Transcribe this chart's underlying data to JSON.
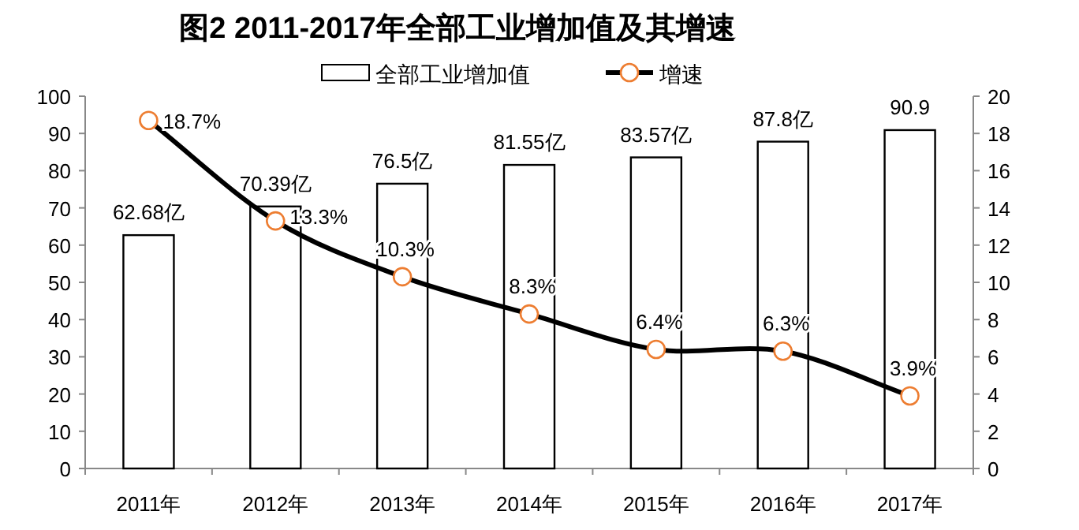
{
  "chart_data": {
    "type": "bar",
    "title": "图2   2011-2017年全部工业增加值及其增速",
    "categories": [
      "2011年",
      "2012年",
      "2013年",
      "2014年",
      "2015年",
      "2016年",
      "2017年"
    ],
    "series": [
      {
        "name": "全部工业增加值",
        "color": "#ffffff",
        "values": [
          62.68,
          70.39,
          76.5,
          81.55,
          83.57,
          87.8,
          90.9
        ],
        "value_labels": [
          "62.68亿",
          "70.39亿",
          "76.5亿",
          "81.55亿",
          "83.57亿",
          "87.8亿",
          "90.9"
        ]
      },
      {
        "name": "增速",
        "type": "line",
        "axis": "y2",
        "color": "#000000",
        "marker": "circle",
        "values": [
          18.7,
          13.3,
          10.3,
          8.3,
          6.4,
          6.3,
          3.9
        ],
        "value_labels": [
          "18.7%",
          "13.3%",
          "10.3%",
          "8.3%",
          "6.4%",
          "6.3%",
          "3.9%"
        ]
      }
    ],
    "ylim": [
      0,
      100
    ],
    "yticks": [
      0,
      10,
      20,
      30,
      40,
      50,
      60,
      70,
      80,
      90,
      100
    ],
    "y2lim": [
      0,
      20
    ],
    "y2ticks": [
      0,
      2,
      4,
      6,
      8,
      10,
      12,
      14,
      16,
      18,
      20
    ],
    "grid": false,
    "legend": "top"
  }
}
